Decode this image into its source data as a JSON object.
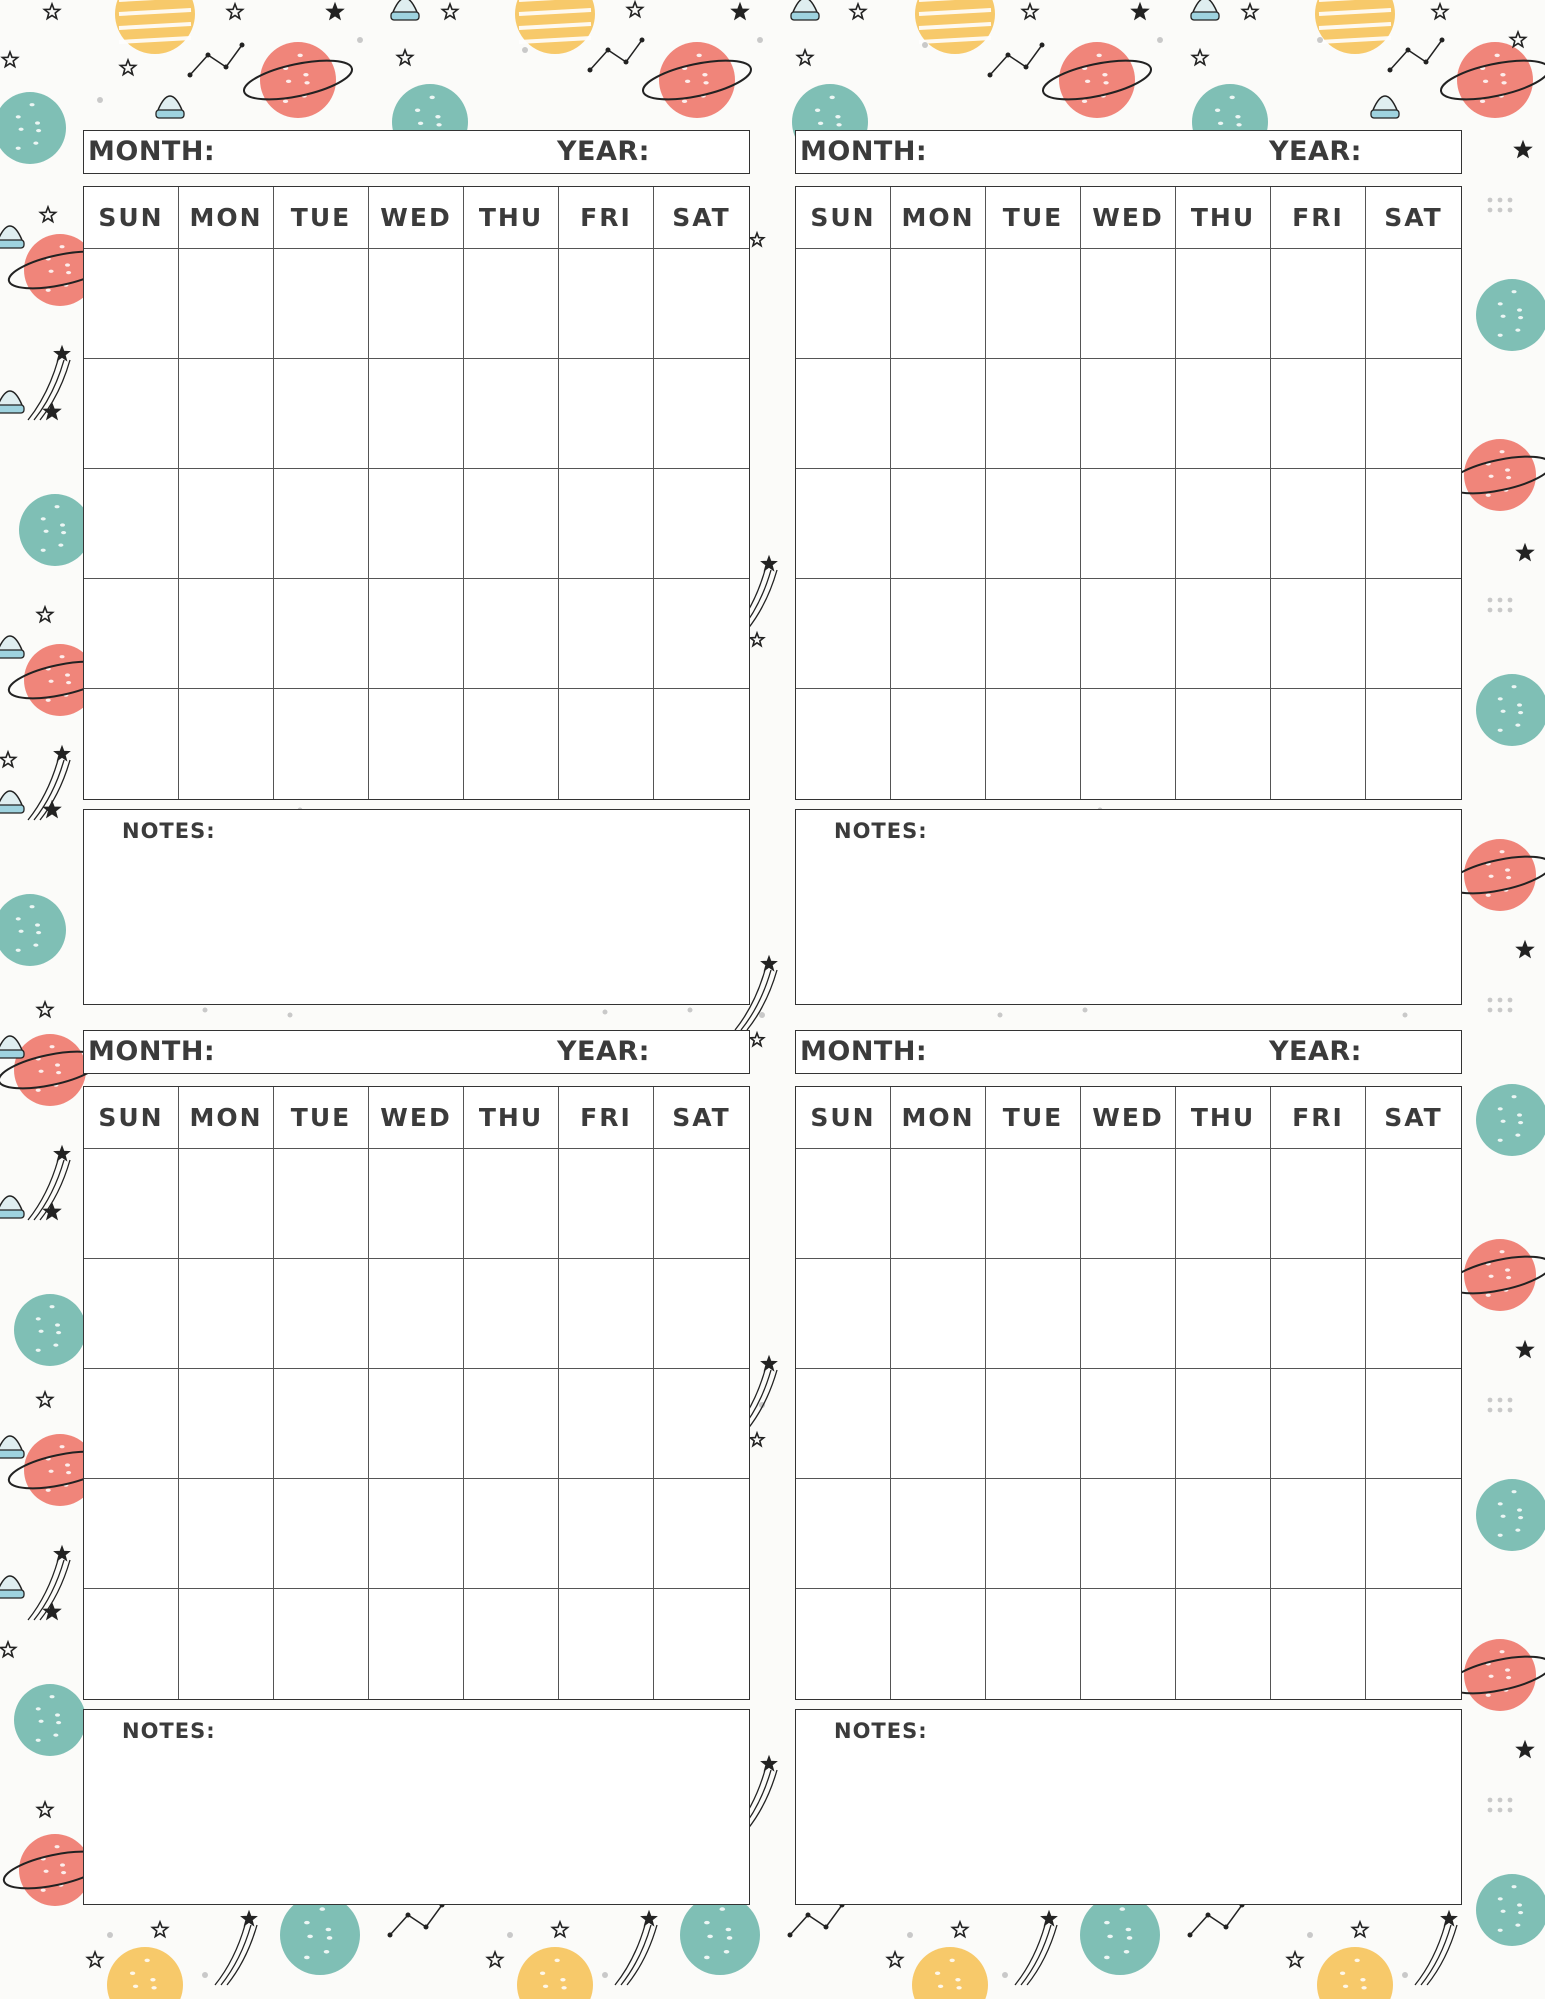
{
  "calendar": {
    "month_label": "MONTH:",
    "year_label": "YEAR:",
    "notes_label": "NOTES:",
    "days": [
      "SUN",
      "MON",
      "TUE",
      "WED",
      "THU",
      "FRI",
      "SAT"
    ],
    "week_rows": 5
  },
  "colors": {
    "teal_planet": "#7fbfb5",
    "coral_planet": "#f0857a",
    "yellow_planet": "#f7c96a",
    "ink": "#222222",
    "dot_gray": "#c9c9c9",
    "background": "#fbfbf9"
  },
  "decorations": [
    "planet-icon",
    "star-icon",
    "shooting-star-icon",
    "constellation-icon",
    "ufo-icon",
    "dots-icon"
  ]
}
